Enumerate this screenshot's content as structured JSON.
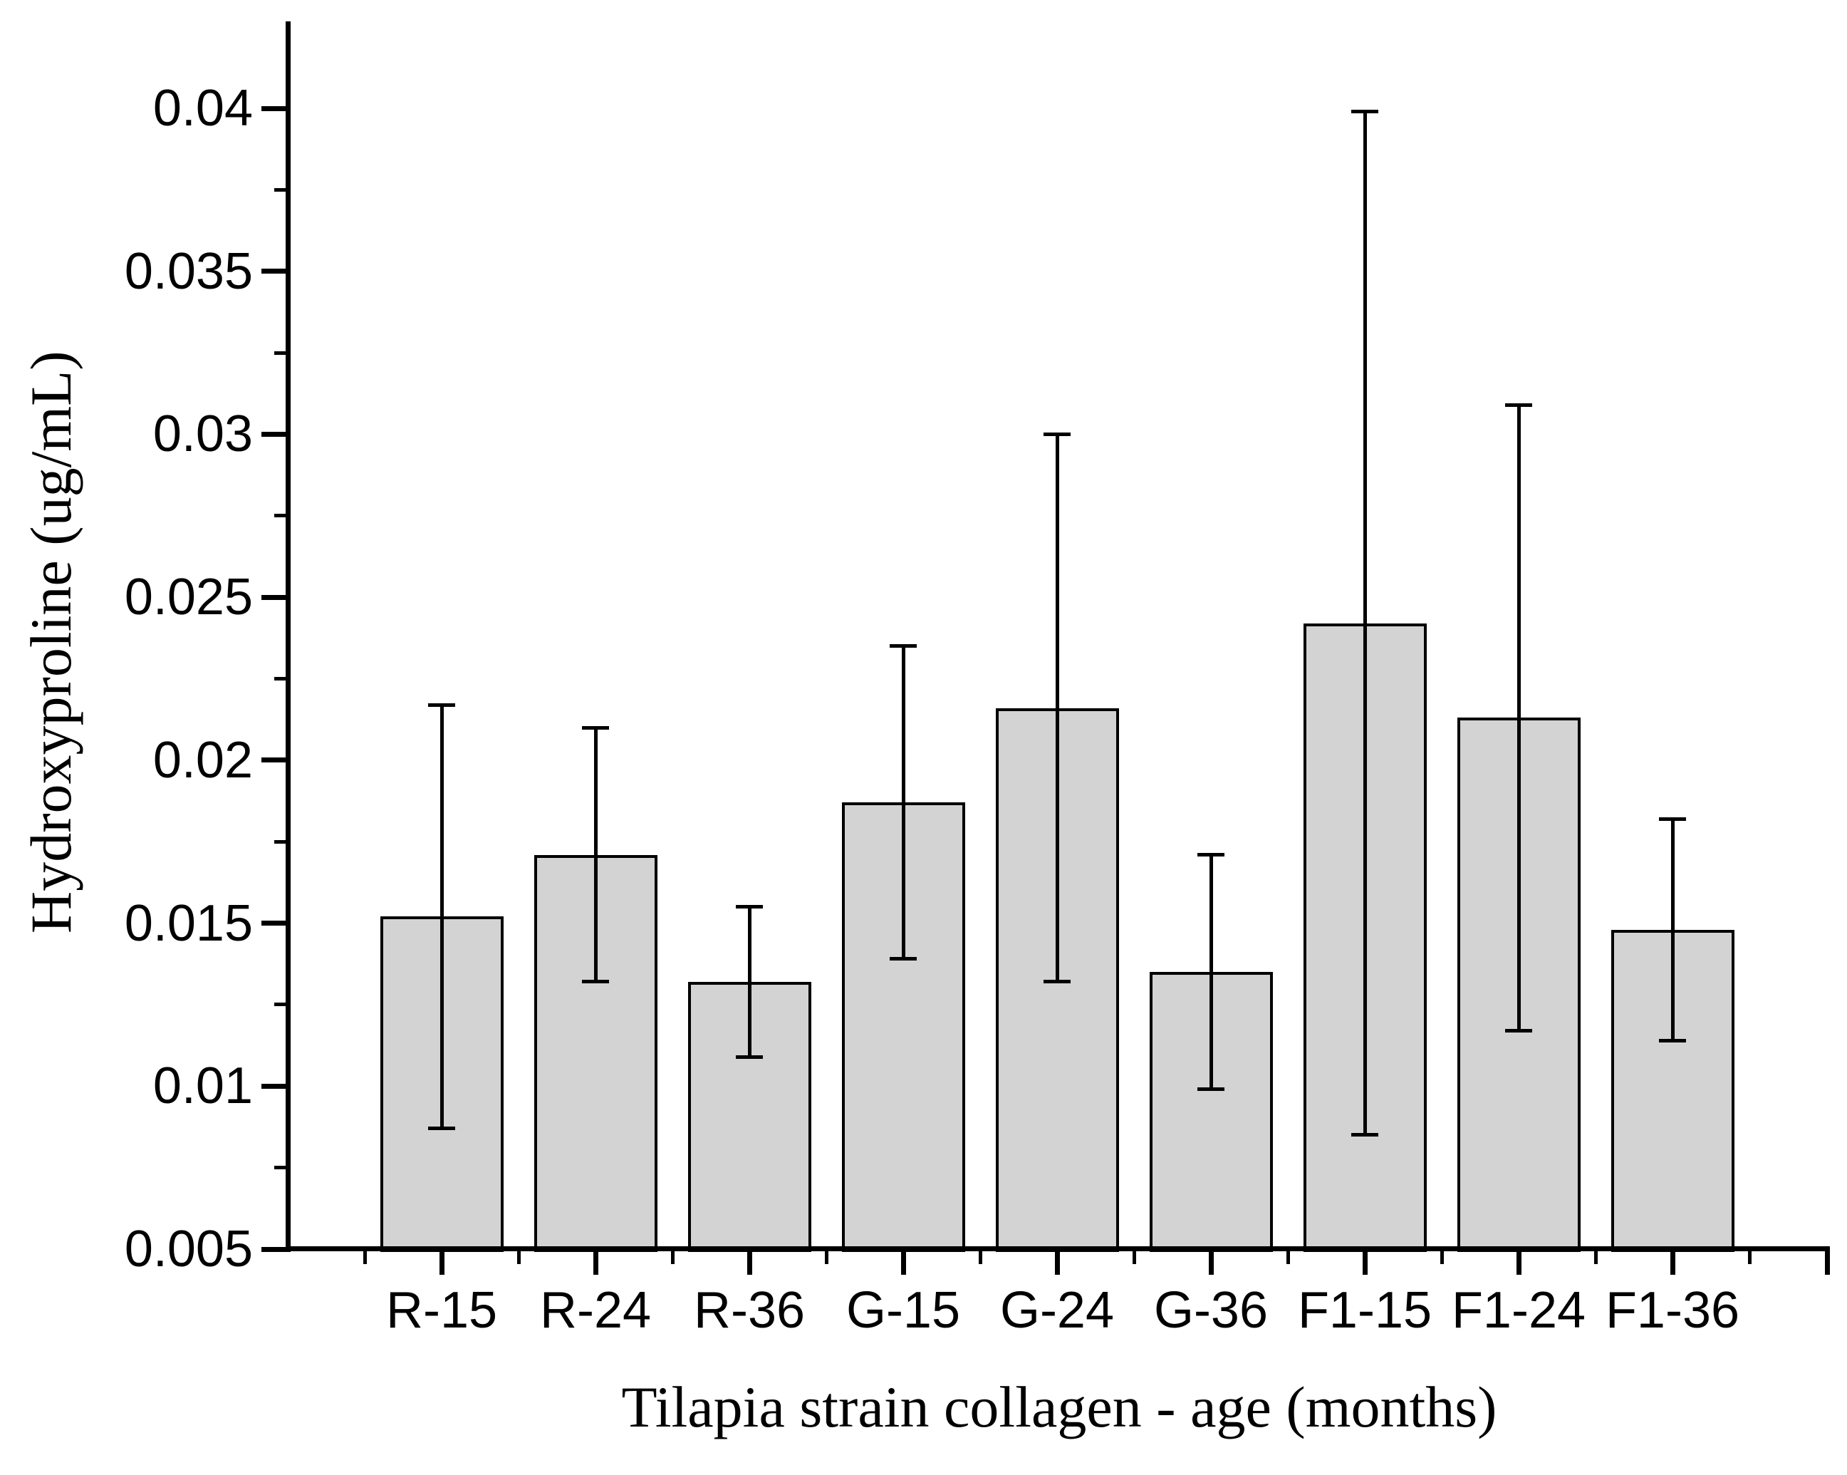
{
  "figure": {
    "background": "#ffffff",
    "line_color": "#000000",
    "bar_fill": "#d3d3d3",
    "y_axis_title": "Hydroxyproline (ug/mL)",
    "x_axis_title": "Tilapia strain collagen - age (months)"
  },
  "chart_data": {
    "type": "bar",
    "title": "",
    "xlabel": "Tilapia strain collagen - age (months)",
    "ylabel": "Hydroxyproline (ug/mL)",
    "categories": [
      "R-15",
      "R-24",
      "R-36",
      "G-15",
      "G-24",
      "G-36",
      "F1-15",
      "F1-24",
      "F1-36"
    ],
    "values": [
      0.0152,
      0.0171,
      0.0132,
      0.0187,
      0.0216,
      0.0135,
      0.0242,
      0.0213,
      0.0148
    ],
    "errors": [
      0.0065,
      0.0039,
      0.0023,
      0.0048,
      0.0084,
      0.0036,
      0.0157,
      0.0096,
      0.0034
    ],
    "error_bar_style": "symmetric, black caps",
    "y_ticks": [
      0.005,
      0.01,
      0.015,
      0.02,
      0.025,
      0.03,
      0.035,
      0.04
    ],
    "y_tick_labels": [
      "0.005",
      "0.01",
      "0.015",
      "0.02",
      "0.025",
      "0.03",
      "0.035",
      "0.04"
    ],
    "y_minor_ticks": [
      0.0075,
      0.0125,
      0.0175,
      0.0225,
      0.0275,
      0.0325,
      0.0375
    ],
    "ylim": [
      0.005,
      0.0427
    ],
    "grid": "off",
    "legend": "none",
    "bar_color": "#d3d3d3",
    "bar_edge_color": "#000000"
  }
}
